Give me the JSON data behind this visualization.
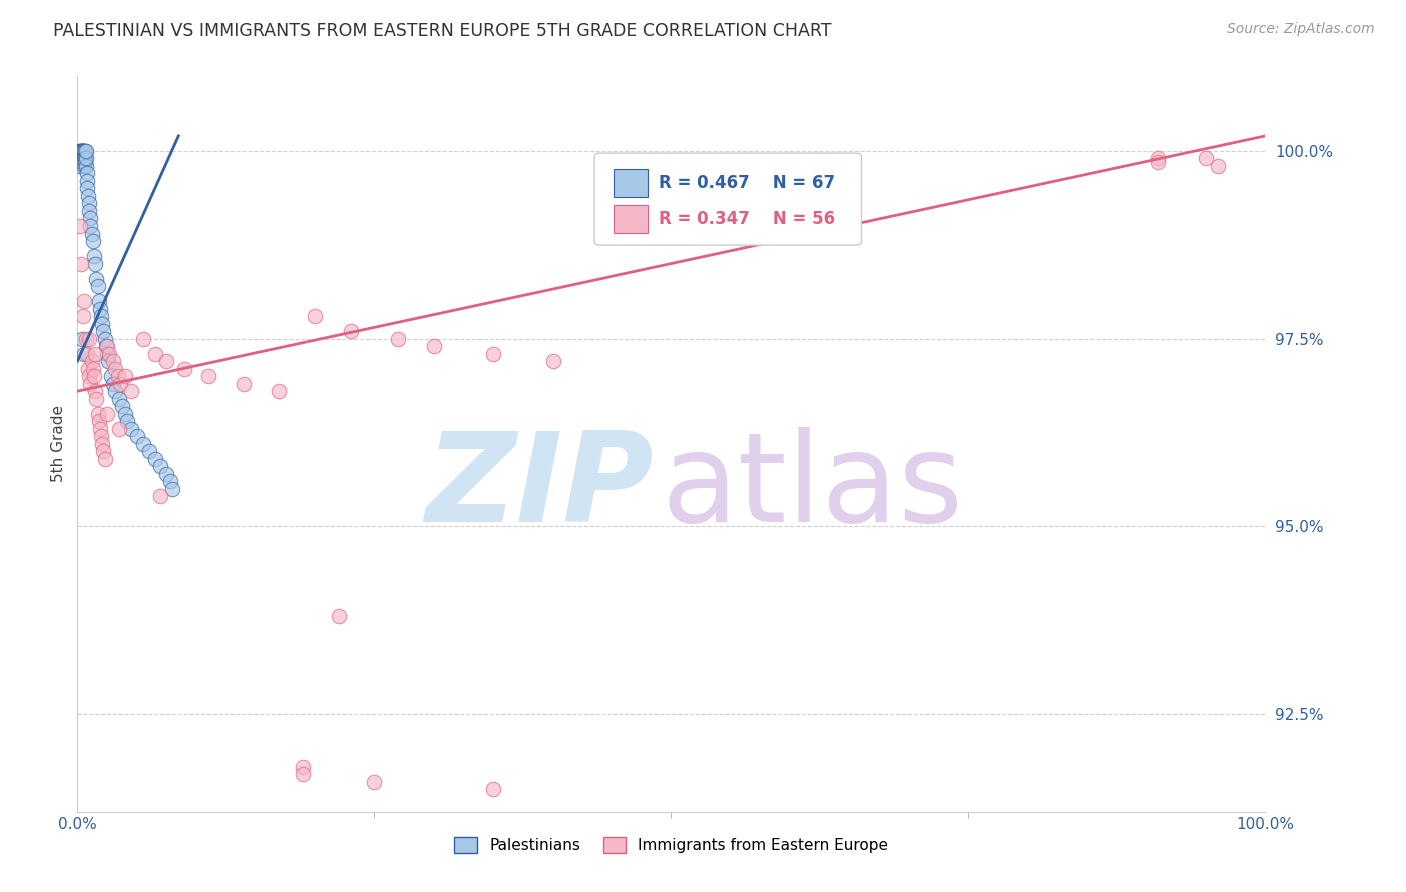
{
  "title": "PALESTINIAN VS IMMIGRANTS FROM EASTERN EUROPE 5TH GRADE CORRELATION CHART",
  "source": "Source: ZipAtlas.com",
  "ylabel": "5th Grade",
  "xmin": 0.0,
  "xmax": 100.0,
  "ymin": 91.2,
  "ymax": 101.0,
  "yticks": [
    92.5,
    95.0,
    97.5,
    100.0
  ],
  "ytick_labels": [
    "92.5%",
    "95.0%",
    "97.5%",
    "100.0%"
  ],
  "legend_r1": "R = 0.467",
  "legend_n1": "N = 67",
  "legend_r2": "R = 0.347",
  "legend_n2": "N = 56",
  "label1": "Palestinians",
  "label2": "Immigrants from Eastern Europe",
  "color1": "#a8c8e8",
  "color2": "#f4b8c8",
  "trendline_color1": "#3060a0",
  "trendline_color2": "#e06080",
  "watermark_color_zip": "#d0e4f4",
  "watermark_color_atlas": "#e0d0ec",
  "blue_trend_x0": 0.0,
  "blue_trend_y0": 97.2,
  "blue_trend_x1": 8.5,
  "blue_trend_y1": 100.2,
  "pink_trend_x0": 0.0,
  "pink_trend_y0": 96.8,
  "pink_trend_x1": 100.0,
  "pink_trend_y1": 100.2,
  "blue_x": [
    0.1,
    0.15,
    0.18,
    0.2,
    0.22,
    0.25,
    0.28,
    0.3,
    0.32,
    0.35,
    0.38,
    0.4,
    0.42,
    0.45,
    0.48,
    0.5,
    0.52,
    0.55,
    0.58,
    0.6,
    0.62,
    0.65,
    0.68,
    0.7,
    0.72,
    0.75,
    0.78,
    0.8,
    0.85,
    0.9,
    0.95,
    1.0,
    1.05,
    1.1,
    1.2,
    1.3,
    1.4,
    1.5,
    1.6,
    1.7,
    1.8,
    1.9,
    2.0,
    2.1,
    2.2,
    2.3,
    2.4,
    2.5,
    2.6,
    2.8,
    3.0,
    3.2,
    3.5,
    3.8,
    4.0,
    4.2,
    4.5,
    5.0,
    5.5,
    6.0,
    6.5,
    7.0,
    7.5,
    7.8,
    8.0,
    0.4,
    0.6
  ],
  "blue_y": [
    99.9,
    99.95,
    100.0,
    100.0,
    99.8,
    99.9,
    100.0,
    100.0,
    99.85,
    99.9,
    100.0,
    100.0,
    99.9,
    99.85,
    100.0,
    100.0,
    99.95,
    100.0,
    99.9,
    99.8,
    100.0,
    99.9,
    99.85,
    99.8,
    99.9,
    100.0,
    99.7,
    99.6,
    99.5,
    99.4,
    99.3,
    99.2,
    99.1,
    99.0,
    98.9,
    98.8,
    98.6,
    98.5,
    98.3,
    98.2,
    98.0,
    97.9,
    97.8,
    97.7,
    97.6,
    97.5,
    97.4,
    97.3,
    97.2,
    97.0,
    96.9,
    96.8,
    96.7,
    96.6,
    96.5,
    96.4,
    96.3,
    96.2,
    96.1,
    96.0,
    95.9,
    95.8,
    95.7,
    95.6,
    95.5,
    97.5,
    97.3
  ],
  "pink_x": [
    0.2,
    0.35,
    0.5,
    0.6,
    0.7,
    0.8,
    0.9,
    1.0,
    1.1,
    1.2,
    1.3,
    1.4,
    1.5,
    1.6,
    1.7,
    1.8,
    1.9,
    2.0,
    2.1,
    2.2,
    2.3,
    2.5,
    2.7,
    3.0,
    3.2,
    3.4,
    3.6,
    4.0,
    4.5,
    5.5,
    6.5,
    7.5,
    9.0,
    11.0,
    14.0,
    17.0,
    20.0,
    23.0,
    27.0,
    30.0,
    35.0,
    40.0,
    22.0,
    91.0,
    96.0,
    1.0,
    1.5,
    2.5,
    3.5,
    7.0,
    19.0,
    35.0,
    19.0,
    25.0,
    91.0,
    95.0
  ],
  "pink_y": [
    99.0,
    98.5,
    97.8,
    98.0,
    97.5,
    97.3,
    97.1,
    97.0,
    96.9,
    97.2,
    97.1,
    97.0,
    96.8,
    96.7,
    96.5,
    96.4,
    96.3,
    96.2,
    96.1,
    96.0,
    95.9,
    97.4,
    97.3,
    97.2,
    97.1,
    97.0,
    96.9,
    97.0,
    96.8,
    97.5,
    97.3,
    97.2,
    97.1,
    97.0,
    96.9,
    96.8,
    97.8,
    97.6,
    97.5,
    97.4,
    97.3,
    97.2,
    93.8,
    99.9,
    99.8,
    97.5,
    97.3,
    96.5,
    96.3,
    95.4,
    91.8,
    91.5,
    91.7,
    91.6,
    99.85,
    99.9
  ]
}
